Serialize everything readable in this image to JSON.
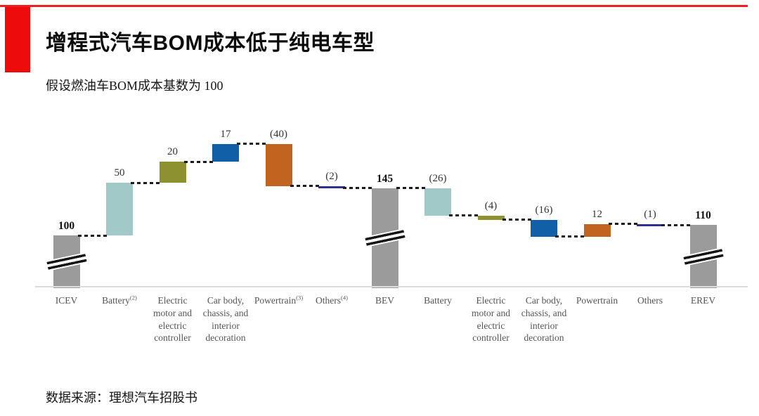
{
  "header": {
    "title": "增程式汽车BOM成本低于纯电车型",
    "subtitle": "假设燃油车BOM成本基数为 100"
  },
  "footer": {
    "source": "数据来源：理想汽车招股书"
  },
  "colors": {
    "accent_red": "#ee0b0b",
    "total_gray": "#9b9b9b",
    "battery_teal": "#a0c9c7",
    "motor_olive": "#8d9130",
    "body_blue": "#1160a7",
    "powertrain_orange": "#c0641f",
    "others_navy": "#2c3192",
    "connector_black": "#1b1b1b",
    "axis_gray": "#dcdcdc",
    "xlabel_gray": "#555555"
  },
  "chart_data": {
    "type": "bar",
    "subtype": "waterfall",
    "title": "增程式汽车BOM成本低于纯电车型",
    "subtitle": "假设燃油车BOM成本基数为 100",
    "grid": false,
    "legend": false,
    "connector_style": "dashed",
    "axis_break_on_total_bars": true,
    "bars": [
      {
        "label": "ICEV",
        "sup": "",
        "label_lines": "ICEV",
        "display": "100",
        "value": 100,
        "kind": "total",
        "colorKey": "total_gray"
      },
      {
        "label": "Battery(2)",
        "sup": "(2)",
        "label_lines": "Battery",
        "display": "50",
        "value": 50,
        "kind": "delta",
        "colorKey": "battery_teal"
      },
      {
        "label": "Electric motor and electric controller",
        "sup": "",
        "label_lines": "Electric\nmotor and\nelectric\ncontroller",
        "display": "20",
        "value": 20,
        "kind": "delta",
        "colorKey": "motor_olive"
      },
      {
        "label": "Car body, chassis, and interior decoration",
        "sup": "",
        "label_lines": "Car body,\nchassis, and\ninterior\ndecoration",
        "display": "17",
        "value": 17,
        "kind": "delta",
        "colorKey": "body_blue"
      },
      {
        "label": "Powertrain(3)",
        "sup": "(3)",
        "label_lines": "Powertrain",
        "display": "(40)",
        "value": -40,
        "kind": "delta",
        "colorKey": "powertrain_orange"
      },
      {
        "label": "Others(4)",
        "sup": "(4)",
        "label_lines": "Others",
        "display": "(2)",
        "value": -2,
        "kind": "delta",
        "colorKey": "others_navy",
        "thin": true
      },
      {
        "label": "BEV",
        "sup": "",
        "label_lines": "BEV",
        "display": "145",
        "value": 145,
        "kind": "total",
        "colorKey": "total_gray"
      },
      {
        "label": "Battery",
        "sup": "",
        "label_lines": "Battery",
        "display": "(26)",
        "value": -26,
        "kind": "delta",
        "colorKey": "battery_teal"
      },
      {
        "label": "Electric motor and electric controller",
        "sup": "",
        "label_lines": "Electric\nmotor and\nelectric\ncontroller",
        "display": "(4)",
        "value": -4,
        "kind": "delta",
        "colorKey": "motor_olive"
      },
      {
        "label": "Car body, chassis, and interior decoration",
        "sup": "",
        "label_lines": "Car body,\nchassis, and\ninterior\ndecoration",
        "display": "(16)",
        "value": -16,
        "kind": "delta",
        "colorKey": "body_blue"
      },
      {
        "label": "Powertrain",
        "sup": "",
        "label_lines": "Powertrain",
        "display": "12",
        "value": 12,
        "kind": "delta",
        "colorKey": "powertrain_orange"
      },
      {
        "label": "Others",
        "sup": "",
        "label_lines": "Others",
        "display": "(1)",
        "value": -1,
        "kind": "delta",
        "colorKey": "others_navy",
        "thin": true
      },
      {
        "label": "EREV",
        "sup": "",
        "label_lines": "EREV",
        "display": "110",
        "value": 110,
        "kind": "total",
        "colorKey": "total_gray"
      }
    ]
  }
}
